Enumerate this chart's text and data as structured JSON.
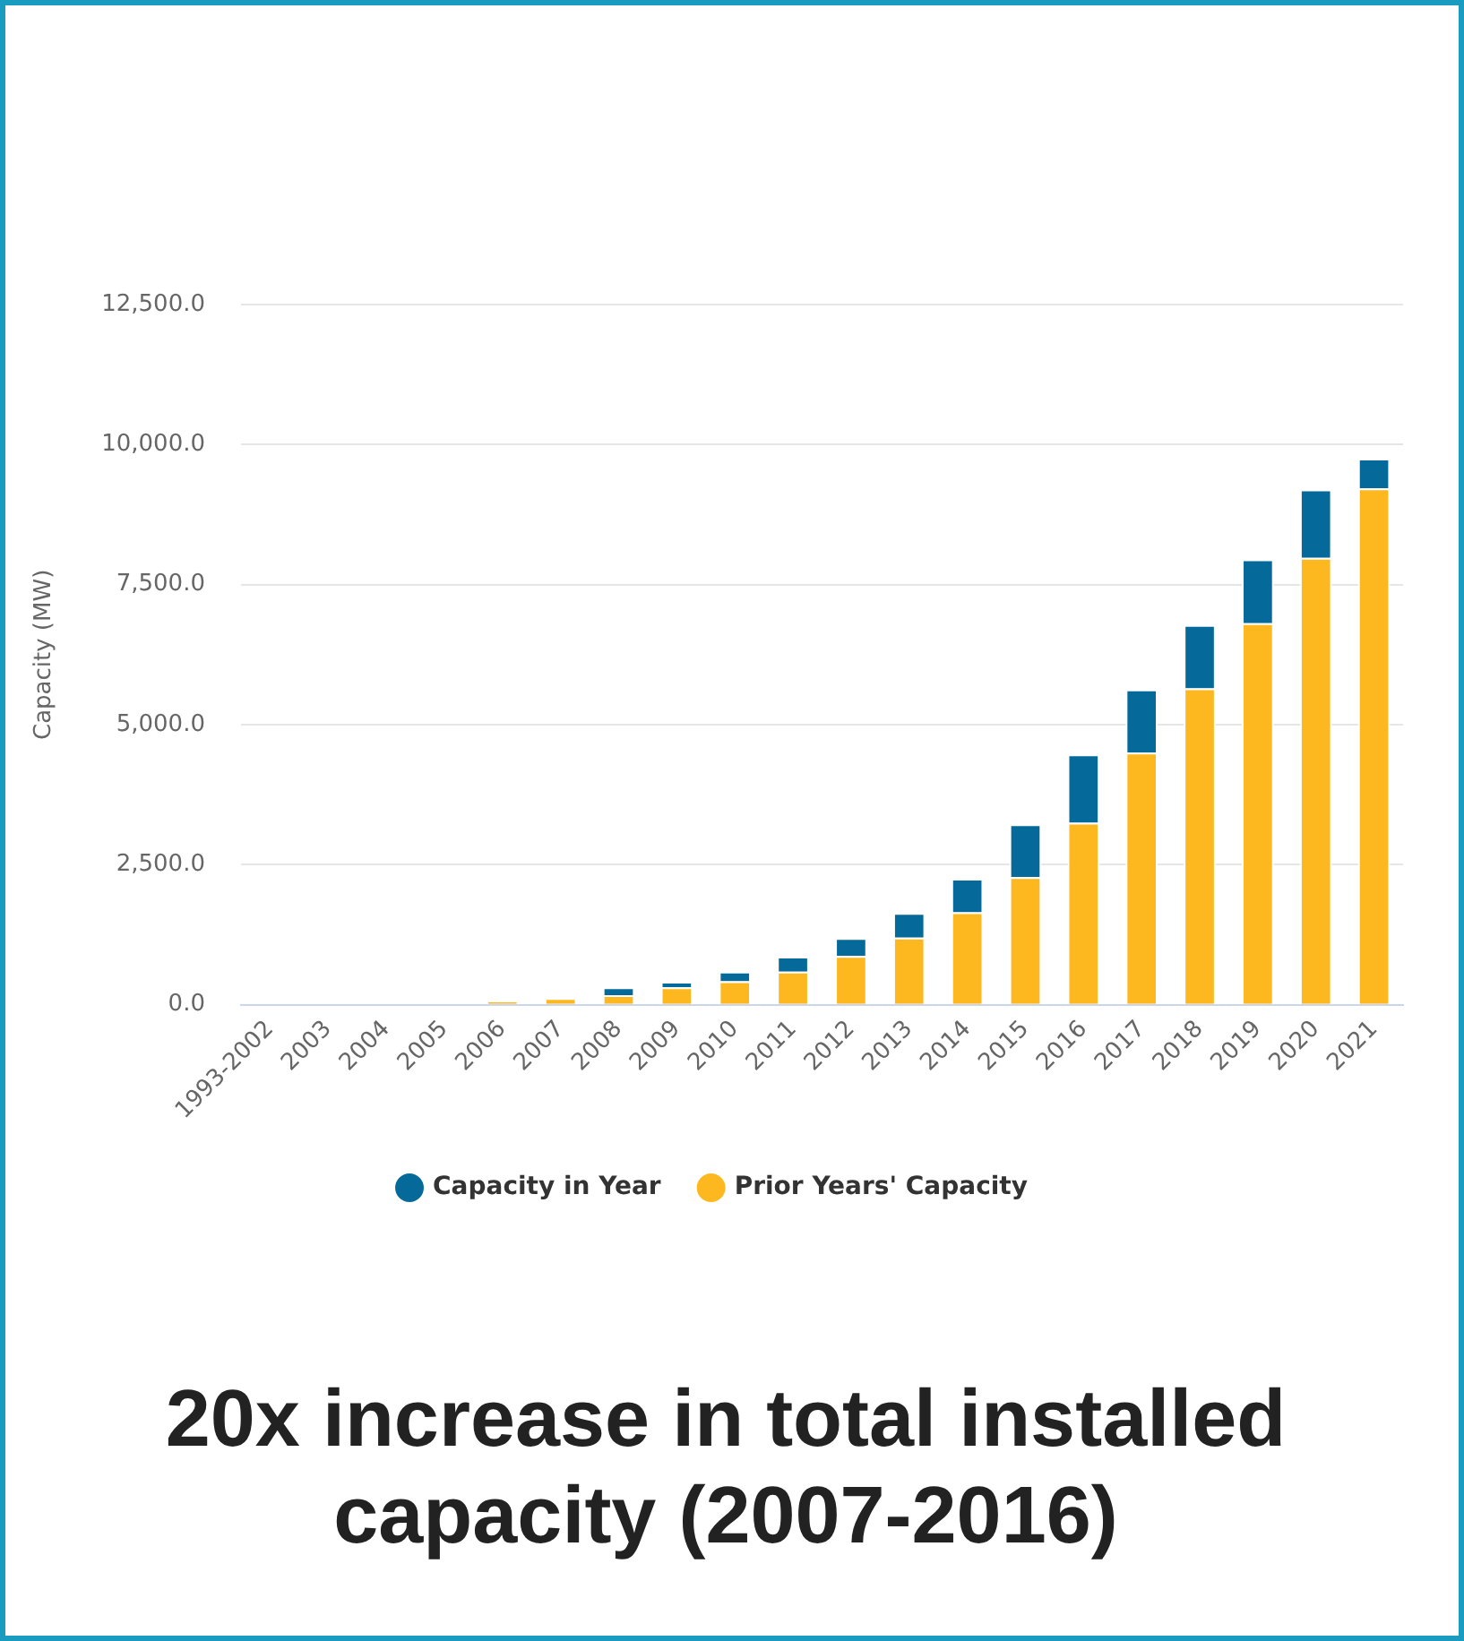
{
  "chart_data": {
    "type": "bar",
    "stacked": true,
    "ylabel": "Capacity (MW)",
    "categories": [
      "1993-2002",
      "2003",
      "2004",
      "2005",
      "2006",
      "2007",
      "2008",
      "2009",
      "2010",
      "2011",
      "2012",
      "2013",
      "2014",
      "2015",
      "2016",
      "2017",
      "2018",
      "2019",
      "2020",
      "2021"
    ],
    "series": [
      {
        "name": "Prior Years' Capacity",
        "color": "#fdb71f",
        "values": [
          0,
          0,
          0,
          0,
          70,
          120,
          170,
          310,
          420,
          590,
          870,
          1200,
          1650,
          2280,
          3250,
          4500,
          5650,
          6810,
          7980,
          9220
        ]
      },
      {
        "name": "Capacity in Year",
        "color": "#05699a",
        "values": [
          0,
          0,
          0,
          0,
          null,
          null,
          140,
          100,
          170,
          270,
          320,
          440,
          600,
          940,
          1220,
          1130,
          1130,
          1140,
          1220,
          530
        ]
      }
    ],
    "ylim": [
      0,
      12500
    ],
    "yticks": [
      {
        "value": 0,
        "label": "0.0"
      },
      {
        "value": 2500,
        "label": "2,500.0"
      },
      {
        "value": 5000,
        "label": "5,000.0"
      },
      {
        "value": 7500,
        "label": "7,500.0"
      },
      {
        "value": 10000,
        "label": "10,000.0"
      },
      {
        "value": 12500,
        "label": "12,500.0"
      }
    ],
    "grid": "y",
    "legend": "bottom",
    "marker": "circle",
    "annotations": [
      "20x increase in total installed capacity (2007-2016)"
    ]
  }
}
